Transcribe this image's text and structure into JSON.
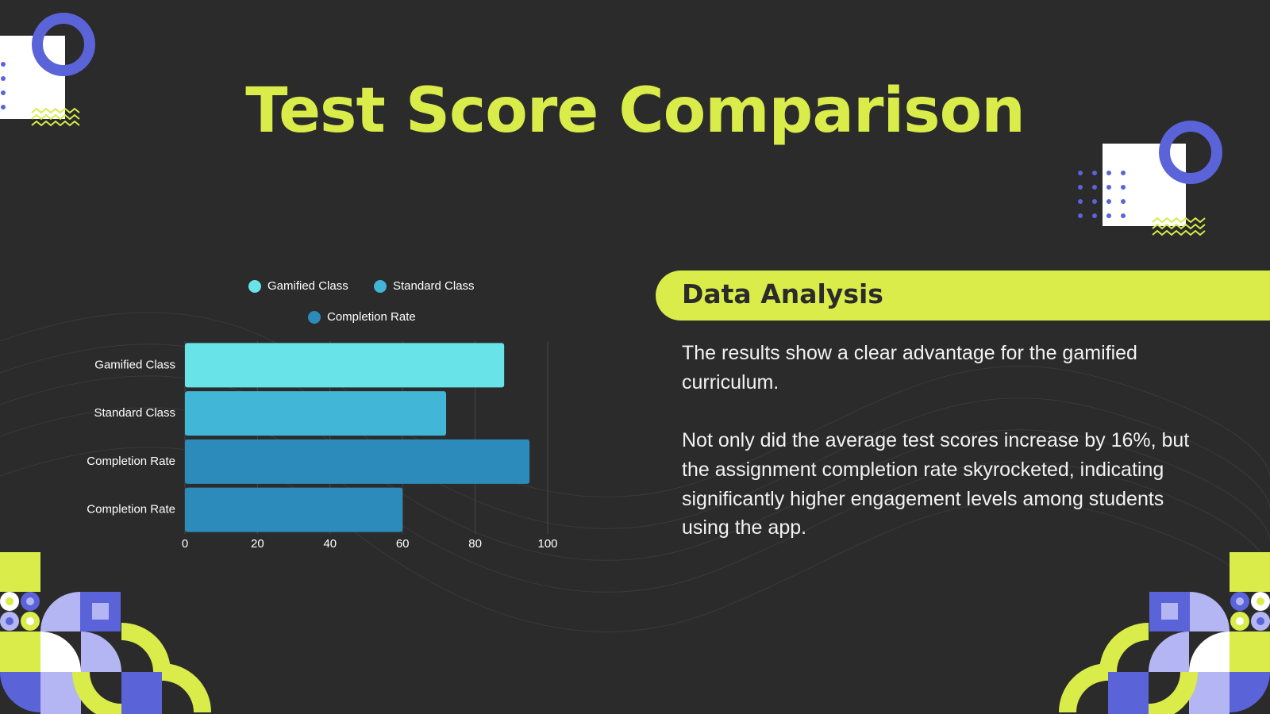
{
  "chart_data": {
    "type": "hbar",
    "title": "Test Score Comparison",
    "categories": [
      "Gamified Class",
      "Standard Class",
      "Completion Rate",
      "Completion Rate"
    ],
    "series": [
      {
        "name": "Gamified Class",
        "color": "#68e4e8",
        "values": [
          88,
          null,
          null,
          null
        ]
      },
      {
        "name": "Standard Class",
        "color": "#41b6d6",
        "values": [
          null,
          72,
          null,
          null
        ]
      },
      {
        "name": "Completion Rate",
        "color": "#2c8bbb",
        "values": [
          null,
          null,
          95,
          60
        ]
      }
    ],
    "xlim": [
      0,
      100
    ],
    "xticks": [
      0,
      20,
      40,
      60,
      80,
      100
    ],
    "grid": true
  },
  "panel": {
    "heading": "Data Analysis",
    "paragraphs": [
      "The results show a clear advantage for the gamified curriculum.",
      "Not only did the average test scores increase by 16%, but the assignment completion rate skyrocketed, indicating significantly higher engagement levels among students using the app."
    ]
  }
}
